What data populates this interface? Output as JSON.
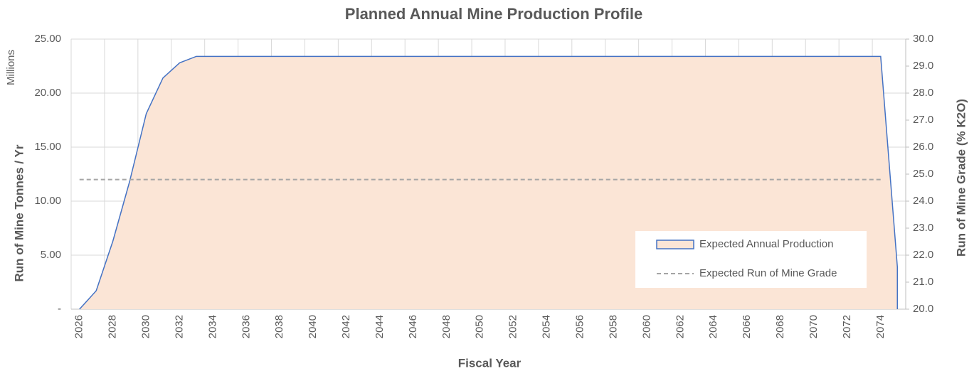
{
  "chart_data": {
    "type": "area-line",
    "title": "Planned Annual Mine Production Profile",
    "x_label": "Fiscal Year",
    "y_label": "Run of Mine Tonnes / Yr",
    "y_unit": "Millions",
    "y2_label": "Run of Mine Grade (% K2O)",
    "categories": [
      "2026",
      null,
      "2028",
      null,
      "2030",
      null,
      "2032",
      null,
      "2034",
      null,
      "2036",
      null,
      "2038",
      null,
      "2040",
      null,
      "2042",
      null,
      "2044",
      null,
      "2046",
      null,
      "2048",
      null,
      "2050",
      null,
      "2052",
      null,
      "2054",
      null,
      "2056",
      null,
      "2058",
      null,
      "2060",
      null,
      "2062",
      null,
      "2064",
      null,
      "2066",
      null,
      "2068",
      null,
      "2070",
      null,
      "2072",
      null,
      "2074",
      null
    ],
    "series": [
      {
        "name": "Expected Annual Production",
        "kind": "area",
        "color": "#4472c4",
        "fill": "#fbe5d6",
        "axis": "y",
        "values": [
          0,
          1.7,
          6.3,
          11.8,
          18.1,
          21.4,
          22.8,
          23.4,
          23.4,
          23.4,
          23.4,
          23.4,
          23.4,
          23.4,
          23.4,
          23.4,
          23.4,
          23.4,
          23.4,
          23.4,
          23.4,
          23.4,
          23.4,
          23.4,
          23.4,
          23.4,
          23.4,
          23.4,
          23.4,
          23.4,
          23.4,
          23.4,
          23.4,
          23.4,
          23.4,
          23.4,
          23.4,
          23.4,
          23.4,
          23.4,
          23.4,
          23.4,
          23.4,
          23.4,
          23.4,
          23.4,
          23.4,
          23.4,
          23.4,
          3.9
        ]
      },
      {
        "name": "Expected Run of Mine Grade",
        "kind": "dashed-line",
        "color": "#a5a5a5",
        "axis": "y2",
        "values": [
          24.8,
          24.8,
          24.8,
          24.8,
          24.8,
          24.8,
          24.8,
          24.8,
          24.8,
          24.8,
          24.8,
          24.8,
          24.8,
          24.8,
          24.8,
          24.8,
          24.8,
          24.8,
          24.8,
          24.8,
          24.8,
          24.8,
          24.8,
          24.8,
          24.8,
          24.8,
          24.8,
          24.8,
          24.8,
          24.8,
          24.8,
          24.8,
          24.8,
          24.8,
          24.8,
          24.8,
          24.8,
          24.8,
          24.8,
          24.8,
          24.8,
          24.8,
          24.8,
          24.8,
          24.8,
          24.8,
          24.8,
          24.8,
          24.8,
          null
        ]
      }
    ],
    "ylim": [
      0,
      25
    ],
    "yticks": [
      {
        "value": 0,
        "label": "-"
      },
      {
        "value": 5,
        "label": "5.00"
      },
      {
        "value": 10,
        "label": "10.00"
      },
      {
        "value": 15,
        "label": "15.00"
      },
      {
        "value": 20,
        "label": "20.00"
      },
      {
        "value": 25,
        "label": "25.00"
      }
    ],
    "y2lim": [
      20,
      30
    ],
    "y2ticks": [
      {
        "value": 20,
        "label": "20.0"
      },
      {
        "value": 21,
        "label": "21.0"
      },
      {
        "value": 22,
        "label": "22.0"
      },
      {
        "value": 23,
        "label": "23.0"
      },
      {
        "value": 24,
        "label": "24.0"
      },
      {
        "value": 25,
        "label": "25.0"
      },
      {
        "value": 26,
        "label": "26.0"
      },
      {
        "value": 27,
        "label": "27.0"
      },
      {
        "value": 28,
        "label": "28.0"
      },
      {
        "value": 29,
        "label": "29.0"
      },
      {
        "value": 30,
        "label": "30.0"
      }
    ],
    "grid": true,
    "legend": "bottom-right"
  }
}
